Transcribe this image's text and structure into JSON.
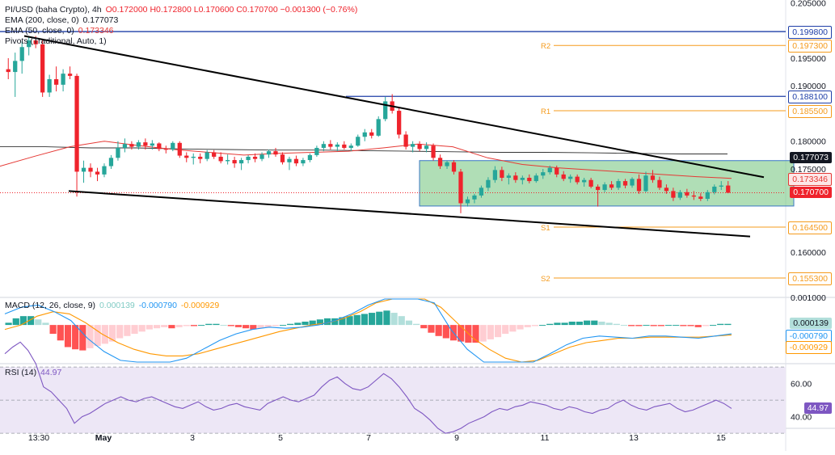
{
  "header": {
    "symbol": "PI/USD (baha Crypto), 4h",
    "ohlc": "O0.172000 H0.172800 L0.170600 C0.170700 −0.001300 (−0.76%)",
    "ema200_label": "EMA (200, close, 0)",
    "ema200_value": "0.177073",
    "ema50_label": "EMA (50, close, 0)",
    "ema50_value": "0.173346",
    "pivots_label": "Pivots (Traditional, Auto, 1)"
  },
  "colors": {
    "up": "#26a69a",
    "down": "#ef232c",
    "ema200": "#333333",
    "ema50": "#e53935",
    "pivot": "#f59b1d",
    "hline": "#1f3fa8",
    "trend": "#000000",
    "box": "#6fc27a",
    "macd_line": "#2196f3",
    "signal_line": "#ff9800",
    "rsi": "#7e57c2",
    "rsi_band": "#ede7f6"
  },
  "price_axis": {
    "ticks": [
      "0.205000",
      "0.195000",
      "0.190000",
      "0.180000",
      "0.175000",
      "0.165000",
      "0.160000"
    ],
    "ylim": [
      0.1518,
      0.2055
    ]
  },
  "pivots": [
    {
      "name": "R2",
      "value": "0.197300"
    },
    {
      "name": "R1",
      "value": "0.185500"
    },
    {
      "name": "S1",
      "value": "0.164500"
    },
    {
      "name": "S2",
      "value": "0.155300"
    }
  ],
  "horizontal_lines": [
    {
      "value": "0.199800"
    },
    {
      "value": "0.188100"
    }
  ],
  "price_tags": {
    "ema200": "0.177073",
    "ema50": "0.173346",
    "last": "0.170700"
  },
  "macd": {
    "label": "MACD (12, 26, close, 9)",
    "hist_value": "0.000139",
    "macd_value": "-0.000790",
    "signal_value": "-0.000929",
    "axis_tick": "0.001000"
  },
  "rsi": {
    "label": "RSI (14)",
    "value": "44.97",
    "axis_ticks": [
      "60.00",
      "40.00"
    ]
  },
  "time_axis": {
    "labels": [
      "13:30",
      "May",
      "3",
      "5",
      "7",
      "9",
      "11",
      "13",
      "15"
    ]
  },
  "chart_data": {
    "type": "candlestick",
    "timeframe": "4h",
    "symbol": "PI/USD",
    "candles": [
      [
        0.193,
        0.195,
        0.1912,
        0.1925
      ],
      [
        0.1925,
        0.196,
        0.188,
        0.1945
      ],
      [
        0.1945,
        0.198,
        0.1922,
        0.197
      ],
      [
        0.197,
        0.1988,
        0.1955,
        0.1982
      ],
      [
        0.1982,
        0.199,
        0.1968,
        0.1975
      ],
      [
        0.1975,
        0.1985,
        0.188,
        0.1888
      ],
      [
        0.1888,
        0.192,
        0.188,
        0.1912
      ],
      [
        0.1912,
        0.1935,
        0.189,
        0.1902
      ],
      [
        0.1902,
        0.193,
        0.189,
        0.1922
      ],
      [
        0.1922,
        0.1935,
        0.1912,
        0.1918
      ],
      [
        0.1918,
        0.1922,
        0.17,
        0.1745
      ],
      [
        0.1745,
        0.1765,
        0.1725,
        0.1752
      ],
      [
        0.1752,
        0.176,
        0.1735,
        0.1745
      ],
      [
        0.1745,
        0.1752,
        0.1728,
        0.174
      ],
      [
        0.174,
        0.176,
        0.1735,
        0.1755
      ],
      [
        0.1755,
        0.1775,
        0.175,
        0.177
      ],
      [
        0.177,
        0.18,
        0.1765,
        0.1788
      ],
      [
        0.1788,
        0.1805,
        0.178,
        0.1795
      ],
      [
        0.1795,
        0.18,
        0.1785,
        0.179
      ],
      [
        0.179,
        0.1802,
        0.1785,
        0.1798
      ],
      [
        0.1798,
        0.1805,
        0.1785,
        0.1792
      ],
      [
        0.1792,
        0.1802,
        0.1785,
        0.1796
      ],
      [
        0.1796,
        0.1798,
        0.1782,
        0.1786
      ],
      [
        0.1786,
        0.1792,
        0.1778,
        0.1785
      ],
      [
        0.1785,
        0.18,
        0.1782,
        0.1797
      ],
      [
        0.1797,
        0.18,
        0.177,
        0.1774
      ],
      [
        0.1774,
        0.178,
        0.1762,
        0.177
      ],
      [
        0.177,
        0.1778,
        0.1758,
        0.1772
      ],
      [
        0.1772,
        0.1778,
        0.176,
        0.1768
      ],
      [
        0.1768,
        0.1784,
        0.1764,
        0.178
      ],
      [
        0.178,
        0.1784,
        0.1768,
        0.1772
      ],
      [
        0.1772,
        0.178,
        0.176,
        0.1764
      ],
      [
        0.1764,
        0.1776,
        0.1758,
        0.1766
      ],
      [
        0.1766,
        0.1772,
        0.1752,
        0.176
      ],
      [
        0.176,
        0.177,
        0.1748,
        0.1766
      ],
      [
        0.1766,
        0.1775,
        0.176,
        0.1772
      ],
      [
        0.1772,
        0.1778,
        0.1762,
        0.1768
      ],
      [
        0.1768,
        0.178,
        0.1764,
        0.1776
      ],
      [
        0.1776,
        0.1785,
        0.177,
        0.1782
      ],
      [
        0.1782,
        0.1788,
        0.1772,
        0.1776
      ],
      [
        0.1776,
        0.178,
        0.1758,
        0.1762
      ],
      [
        0.1762,
        0.1772,
        0.1748,
        0.1768
      ],
      [
        0.1768,
        0.1774,
        0.1755,
        0.176
      ],
      [
        0.176,
        0.177,
        0.1755,
        0.1766
      ],
      [
        0.1766,
        0.1778,
        0.1762,
        0.1775
      ],
      [
        0.1775,
        0.1792,
        0.1772,
        0.1788
      ],
      [
        0.1788,
        0.18,
        0.1782,
        0.1795
      ],
      [
        0.1795,
        0.1802,
        0.1785,
        0.179
      ],
      [
        0.179,
        0.1798,
        0.1782,
        0.1794
      ],
      [
        0.1794,
        0.18,
        0.1785,
        0.1788
      ],
      [
        0.1788,
        0.1796,
        0.1782,
        0.1792
      ],
      [
        0.1792,
        0.1812,
        0.179,
        0.1808
      ],
      [
        0.1808,
        0.1822,
        0.18,
        0.1816
      ],
      [
        0.1816,
        0.1822,
        0.1805,
        0.181
      ],
      [
        0.181,
        0.1845,
        0.1808,
        0.184
      ],
      [
        0.184,
        0.188,
        0.1836,
        0.1872
      ],
      [
        0.1872,
        0.1885,
        0.185,
        0.1855
      ],
      [
        0.1855,
        0.186,
        0.1805,
        0.1812
      ],
      [
        0.1812,
        0.1818,
        0.1785,
        0.179
      ],
      [
        0.179,
        0.18,
        0.178,
        0.1795
      ],
      [
        0.1795,
        0.18,
        0.1782,
        0.1786
      ],
      [
        0.1786,
        0.1798,
        0.178,
        0.1792
      ],
      [
        0.1792,
        0.1796,
        0.1765,
        0.177
      ],
      [
        0.177,
        0.1776,
        0.175,
        0.1755
      ],
      [
        0.1755,
        0.1765,
        0.175,
        0.1762
      ],
      [
        0.1762,
        0.1766,
        0.174,
        0.1745
      ],
      [
        0.1745,
        0.175,
        0.167,
        0.1688
      ],
      [
        0.1688,
        0.17,
        0.1682,
        0.1695
      ],
      [
        0.1695,
        0.1705,
        0.1688,
        0.1702
      ],
      [
        0.1702,
        0.172,
        0.1698,
        0.1716
      ],
      [
        0.1716,
        0.1735,
        0.171,
        0.173
      ],
      [
        0.173,
        0.1755,
        0.1725,
        0.1748
      ],
      [
        0.1748,
        0.1754,
        0.1728,
        0.1734
      ],
      [
        0.1734,
        0.1742,
        0.1722,
        0.1738
      ],
      [
        0.1738,
        0.1744,
        0.1725,
        0.173
      ],
      [
        0.173,
        0.1738,
        0.1722,
        0.1734
      ],
      [
        0.1734,
        0.174,
        0.1724,
        0.1728
      ],
      [
        0.1728,
        0.1742,
        0.1725,
        0.1738
      ],
      [
        0.1738,
        0.175,
        0.1732,
        0.1744
      ],
      [
        0.1744,
        0.1756,
        0.174,
        0.1752
      ],
      [
        0.1752,
        0.1756,
        0.1735,
        0.174
      ],
      [
        0.174,
        0.1746,
        0.1728,
        0.1732
      ],
      [
        0.1732,
        0.174,
        0.1725,
        0.1736
      ],
      [
        0.1736,
        0.174,
        0.1722,
        0.1726
      ],
      [
        0.1726,
        0.1734,
        0.1718,
        0.173
      ],
      [
        0.173,
        0.1734,
        0.1715,
        0.1718
      ],
      [
        0.1718,
        0.1722,
        0.1682,
        0.1712
      ],
      [
        0.1712,
        0.1726,
        0.1708,
        0.1722
      ],
      [
        0.1722,
        0.1728,
        0.1712,
        0.1716
      ],
      [
        0.1716,
        0.1732,
        0.1712,
        0.1728
      ],
      [
        0.1728,
        0.1732,
        0.1715,
        0.172
      ],
      [
        0.172,
        0.1735,
        0.1716,
        0.1732
      ],
      [
        0.1732,
        0.174,
        0.1705,
        0.171
      ],
      [
        0.171,
        0.1745,
        0.1708,
        0.1738
      ],
      [
        0.1738,
        0.1748,
        0.1725,
        0.173
      ],
      [
        0.173,
        0.1736,
        0.1712,
        0.1716
      ],
      [
        0.1716,
        0.1722,
        0.1705,
        0.171
      ],
      [
        0.171,
        0.1716,
        0.1692,
        0.1698
      ],
      [
        0.1698,
        0.1712,
        0.1694,
        0.1708
      ],
      [
        0.1708,
        0.1714,
        0.1698,
        0.1702
      ],
      [
        0.1702,
        0.171,
        0.1694,
        0.17
      ],
      [
        0.17,
        0.1706,
        0.1692,
        0.1696
      ],
      [
        0.1696,
        0.1712,
        0.1692,
        0.1708
      ],
      [
        0.1708,
        0.1722,
        0.1704,
        0.1718
      ],
      [
        0.1718,
        0.1728,
        0.1712,
        0.172
      ],
      [
        0.172,
        0.1728,
        0.1706,
        0.1707
      ]
    ],
    "ema200": [
      0.179,
      0.179,
      0.1788,
      0.1788,
      0.1786,
      0.1785,
      0.1784,
      0.1784,
      0.1783,
      0.1782,
      0.1781,
      0.178,
      0.178,
      0.1779,
      0.1778,
      0.1777,
      0.1777
    ],
    "ema50": [
      0.1755,
      0.1773,
      0.179,
      0.18,
      0.1792,
      0.1785,
      0.178,
      0.1775,
      0.1778,
      0.178,
      0.1782,
      0.1788,
      0.1795,
      0.179,
      0.177,
      0.1758,
      0.1752,
      0.1748,
      0.1744,
      0.174,
      0.1736,
      0.1733
    ],
    "macd_hist": [
      0.0002,
      0.0006,
      0.0008,
      0.0008,
      0.0005,
      0.0002,
      -0.0008,
      -0.0014,
      -0.002,
      -0.0022,
      -0.0023,
      -0.0021,
      -0.0019,
      -0.0017,
      -0.0015,
      -0.0012,
      -0.001,
      -0.0008,
      -0.0006,
      -0.0004,
      -0.0003,
      -0.0002,
      -0.0003,
      -0.0002,
      -0.0001,
      -0.0001,
      0.0,
      0.0001,
      0.0001,
      0.0,
      -0.0001,
      -0.0002,
      -0.0003,
      -0.0004,
      -0.0003,
      -0.0002,
      -0.0001,
      0.0,
      0.0001,
      0.0002,
      0.0003,
      0.0004,
      0.0005,
      0.0006,
      0.0006,
      0.0007,
      0.0008,
      0.0009,
      0.001,
      0.0011,
      0.0012,
      0.0013,
      0.0011,
      0.0008,
      0.0004,
      0.0001,
      -0.0003,
      -0.0007,
      -0.001,
      -0.0012,
      -0.0014,
      -0.0015,
      -0.0016,
      -0.0016,
      -0.0015,
      -0.0013,
      -0.0011,
      -0.0008,
      -0.0006,
      -0.0004,
      -0.0002,
      -0.0001,
      0.0,
      0.0001,
      0.0002,
      0.0002,
      0.0003,
      0.0003,
      0.0004,
      0.0004,
      0.0003,
      0.0002,
      0.0001,
      0.0,
      -0.0001,
      -0.0001,
      0.0,
      -0.0001,
      -0.0001,
      0.0,
      0.0,
      -0.0001,
      -0.0001,
      -0.0002,
      -0.0001,
      0.0,
      0.0001,
      0.0001
    ],
    "macd_line": [
      0.001,
      0.0016,
      0.0018,
      0.0012,
      0.0004,
      -0.0012,
      -0.0024,
      -0.0032,
      -0.0036,
      -0.0038,
      -0.0036,
      -0.003,
      -0.0022,
      -0.0014,
      -0.0008,
      -0.0004,
      -0.0002,
      -0.0003,
      -0.0002,
      0.0,
      0.0004,
      0.001,
      0.0018,
      0.0026,
      0.0034,
      0.0036,
      0.002,
      -0.0004,
      -0.0022,
      -0.0034,
      -0.004,
      -0.0042,
      -0.0036,
      -0.0026,
      -0.0018,
      -0.0012,
      -0.001,
      -0.0011,
      -0.0012,
      -0.001,
      -0.001,
      -0.0011,
      -0.0012,
      -0.001,
      -0.0008
    ],
    "signal_line": [
      -0.0004,
      0.0,
      0.0008,
      0.0012,
      0.001,
      0.0002,
      -0.0008,
      -0.0016,
      -0.0022,
      -0.0026,
      -0.0028,
      -0.0028,
      -0.0026,
      -0.0022,
      -0.0018,
      -0.0014,
      -0.001,
      -0.0006,
      -0.0003,
      0.0,
      0.0002,
      0.0006,
      0.0012,
      0.002,
      0.0026,
      0.003,
      0.0028,
      0.0016,
      0.0002,
      -0.0012,
      -0.0022,
      -0.003,
      -0.0034,
      -0.0032,
      -0.0026,
      -0.002,
      -0.0016,
      -0.0014,
      -0.0012,
      -0.0012,
      -0.0011,
      -0.0011,
      -0.0011,
      -0.0011,
      -0.001,
      -0.0009
    ],
    "macd_ylim": [
      -0.0035,
      0.0022
    ],
    "rsi_values": [
      78,
      82,
      85,
      80,
      72,
      58,
      55,
      50,
      45,
      36,
      40,
      42,
      45,
      48,
      50,
      52,
      50,
      49,
      51,
      52,
      50,
      48,
      46,
      45,
      47,
      49,
      46,
      44,
      45,
      47,
      48,
      46,
      45,
      44,
      48,
      50,
      52,
      50,
      49,
      51,
      53,
      58,
      62,
      64,
      60,
      57,
      56,
      58,
      62,
      66,
      63,
      58,
      52,
      45,
      42,
      38,
      33,
      30,
      31,
      33,
      36,
      38,
      40,
      43,
      45,
      44,
      46,
      47,
      49,
      48,
      47,
      45,
      44,
      46,
      45,
      43,
      42,
      44,
      45,
      48,
      50,
      47,
      45,
      44,
      46,
      47,
      48,
      45,
      43,
      44,
      46,
      48,
      50,
      48,
      45
    ],
    "rsi_ylim": [
      33,
      72
    ],
    "rsi_bands": [
      70,
      50,
      30
    ]
  }
}
